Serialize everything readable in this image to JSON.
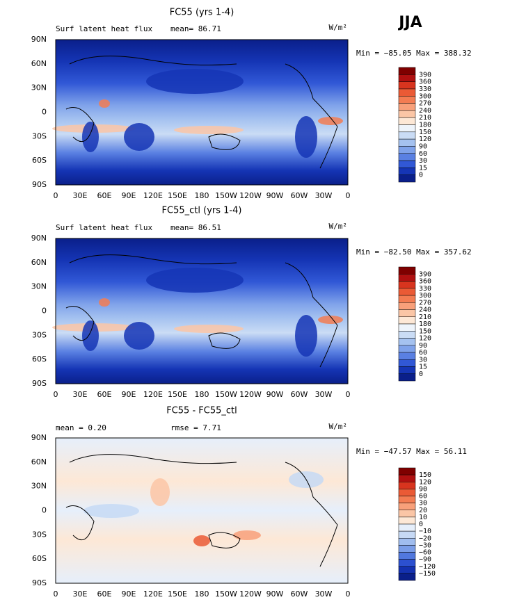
{
  "header": {
    "title": "JJA"
  },
  "panels": [
    {
      "title": "FC55 (yrs 1-4)",
      "left_label": "Surf latent heat flux",
      "center_label": "mean=  86.71",
      "units": "W/m²",
      "minmax": "Min = −85.05 Max = 388.32",
      "colorbar": {
        "labels": [
          "390",
          "360",
          "330",
          "300",
          "270",
          "240",
          "210",
          "180",
          "150",
          "120",
          "90",
          "60",
          "30",
          "15",
          "0"
        ],
        "colors": [
          "#7f0000",
          "#b01010",
          "#d8341e",
          "#ea5a35",
          "#f37c52",
          "#f8a07a",
          "#fbc6a6",
          "#fde8d6",
          "#eef4fb",
          "#cadcf5",
          "#a5c2f0",
          "#7fa2ea",
          "#5a80e2",
          "#3158d6",
          "#1535b5",
          "#0a1f8a"
        ]
      }
    },
    {
      "title": "FC55_ctl (yrs 1-4)",
      "left_label": "Surf latent heat flux",
      "center_label": "mean=  86.51",
      "units": "W/m²",
      "minmax": "Min = −82.50 Max = 357.62",
      "colorbar": {
        "labels": [
          "390",
          "360",
          "330",
          "300",
          "270",
          "240",
          "210",
          "180",
          "150",
          "120",
          "90",
          "60",
          "30",
          "15",
          "0"
        ],
        "colors": [
          "#7f0000",
          "#b01010",
          "#d8341e",
          "#ea5a35",
          "#f37c52",
          "#f8a07a",
          "#fbc6a6",
          "#fde8d6",
          "#eef4fb",
          "#cadcf5",
          "#a5c2f0",
          "#7fa2ea",
          "#5a80e2",
          "#3158d6",
          "#1535b5",
          "#0a1f8a"
        ]
      }
    },
    {
      "title": "FC55 - FC55_ctl",
      "left_label": "mean =   0.20",
      "center_label": "rmse =   7.71",
      "units": "W/m²",
      "minmax": "Min = −47.57 Max =  56.11",
      "colorbar": {
        "labels": [
          "150",
          "120",
          "90",
          "60",
          "30",
          "20",
          "10",
          "0",
          "−10",
          "−20",
          "−30",
          "−60",
          "−90",
          "−120",
          "−150"
        ],
        "colors": [
          "#7f0000",
          "#b01010",
          "#d8341e",
          "#ea5a35",
          "#f37c52",
          "#f8a07a",
          "#fbc6a6",
          "#fde8d6",
          "#e6effb",
          "#c6d9f5",
          "#a0bdef",
          "#7a9de8",
          "#5178de",
          "#2c50d0",
          "#1431b0",
          "#0a1f8a"
        ]
      }
    }
  ],
  "lat_labels": [
    "90N",
    "60N",
    "30N",
    "0",
    "30S",
    "60S",
    "90S"
  ],
  "lon_labels": [
    "0",
    "30E",
    "60E",
    "90E",
    "120E",
    "150E",
    "180",
    "150W",
    "120W",
    "90W",
    "60W",
    "30W",
    "0"
  ]
}
